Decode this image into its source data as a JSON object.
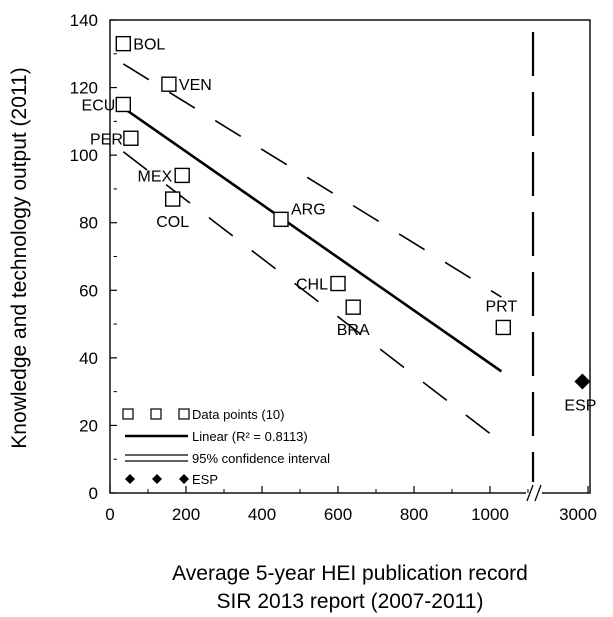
{
  "chart_data": {
    "type": "scatter",
    "xlabel": [
      "Average 5-year HEI publication record",
      "SIR 2013 report (2007-2011)"
    ],
    "ylabel": "Knowledge and technology output (2011)",
    "xlim": [
      0,
      1100
    ],
    "ylim": [
      0,
      140
    ],
    "x_axis_break": true,
    "x_ticks": [
      0,
      200,
      400,
      600,
      800,
      1000
    ],
    "x_tick_labels": [
      "0",
      "200",
      "400",
      "600",
      "800",
      "1000"
    ],
    "x_break_tick": {
      "x": 3000,
      "label": "3000"
    },
    "y_ticks": [
      0,
      20,
      40,
      60,
      80,
      100,
      120,
      140
    ],
    "y_tick_labels": [
      "0",
      "20",
      "40",
      "60",
      "80",
      "100",
      "120",
      "140"
    ],
    "grid": false,
    "legend_position": "bottom-left",
    "series": [
      {
        "name": "Data points (10)",
        "marker": "open-square",
        "points": [
          {
            "label": "BOL",
            "x": 35,
            "y": 133
          },
          {
            "label": "VEN",
            "x": 155,
            "y": 121
          },
          {
            "label": "ECU",
            "x": 35,
            "y": 115
          },
          {
            "label": "PER",
            "x": 55,
            "y": 105
          },
          {
            "label": "MEX",
            "x": 190,
            "y": 94
          },
          {
            "label": "COL",
            "x": 165,
            "y": 87
          },
          {
            "label": "ARG",
            "x": 450,
            "y": 81
          },
          {
            "label": "CHL",
            "x": 600,
            "y": 62
          },
          {
            "label": "BRA",
            "x": 640,
            "y": 55
          },
          {
            "label": "PRT",
            "x": 1035,
            "y": 49
          }
        ]
      },
      {
        "name": "Linear (R² = 0.8113)",
        "type": "line",
        "points": [
          {
            "x": 35,
            "y": 114
          },
          {
            "x": 1030,
            "y": 36
          }
        ]
      },
      {
        "name": "95% confidence interval",
        "type": "dashed-line",
        "upper": [
          {
            "x": 35,
            "y": 127
          },
          {
            "x": 1030,
            "y": 58
          }
        ],
        "lower": [
          {
            "x": 35,
            "y": 101
          },
          {
            "x": 1030,
            "y": 15
          }
        ]
      },
      {
        "name": "ESP",
        "marker": "filled-diamond",
        "points": [
          {
            "label": "ESP",
            "x": 2800,
            "y": 33
          }
        ]
      }
    ]
  }
}
